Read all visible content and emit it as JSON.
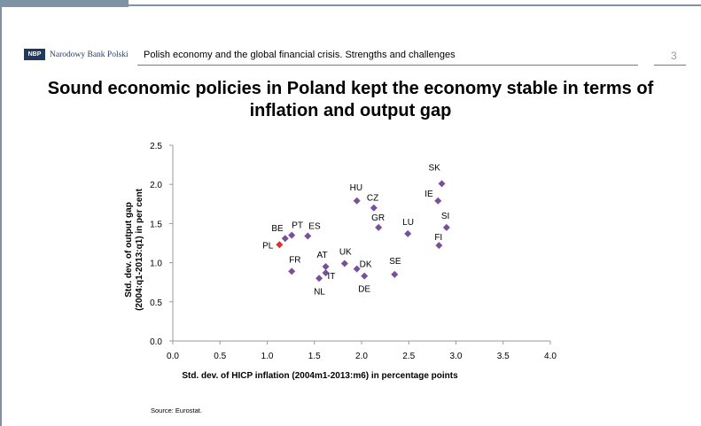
{
  "header": {
    "logo_abbr": "NBP",
    "logo_name": "Narodowy Bank Polski",
    "title": "Polish economy and the global financial crisis. Strengths and challenges",
    "page_number": "3"
  },
  "slide_title": "Sound economic policies in Poland kept the economy stable in terms of inflation and output gap",
  "source": "Source: Eurostat.",
  "colors": {
    "point": "#7a4f9a",
    "highlight": "#e0302a",
    "frame": "#7f93a6",
    "rule": "#4a8aa6"
  },
  "chart_data": {
    "type": "scatter",
    "xlabel": "Std. dev. of HICP inflation (2004m1-2013:m6) in percentage points",
    "ylabel_lines": [
      "Std. dev. of output gap",
      "(2004:q1-2013:q1) in per cent"
    ],
    "xlim": [
      0,
      4
    ],
    "ylim": [
      0,
      2.5
    ],
    "x_ticks": [
      "0.0",
      "0.5",
      "1.0",
      "1.5",
      "2.0",
      "2.5",
      "3.0",
      "3.5",
      "4.0"
    ],
    "y_ticks": [
      "0.0",
      "0.5",
      "1.0",
      "1.5",
      "2.0",
      "2.5"
    ],
    "grid": false,
    "points": [
      {
        "label": "PL",
        "x": 1.13,
        "y": 1.23,
        "highlight": true
      },
      {
        "label": "BE",
        "x": 1.19,
        "y": 1.31
      },
      {
        "label": "PT",
        "x": 1.26,
        "y": 1.35
      },
      {
        "label": "ES",
        "x": 1.43,
        "y": 1.34
      },
      {
        "label": "FR",
        "x": 1.26,
        "y": 0.89
      },
      {
        "label": "AT",
        "x": 1.62,
        "y": 0.95
      },
      {
        "label": "IT",
        "x": 1.62,
        "y": 0.87
      },
      {
        "label": "NL",
        "x": 1.55,
        "y": 0.8
      },
      {
        "label": "UK",
        "x": 1.82,
        "y": 0.99
      },
      {
        "label": "DK",
        "x": 1.95,
        "y": 0.92
      },
      {
        "label": "DE",
        "x": 2.03,
        "y": 0.83
      },
      {
        "label": "HU",
        "x": 1.95,
        "y": 1.79
      },
      {
        "label": "CZ",
        "x": 2.13,
        "y": 1.7
      },
      {
        "label": "GR",
        "x": 2.18,
        "y": 1.45
      },
      {
        "label": "LU",
        "x": 2.49,
        "y": 1.37
      },
      {
        "label": "SE",
        "x": 2.35,
        "y": 0.85
      },
      {
        "label": "SK",
        "x": 2.85,
        "y": 2.01
      },
      {
        "label": "IE",
        "x": 2.81,
        "y": 1.79
      },
      {
        "label": "SI",
        "x": 2.9,
        "y": 1.45
      },
      {
        "label": "FI",
        "x": 2.82,
        "y": 1.22
      }
    ]
  }
}
